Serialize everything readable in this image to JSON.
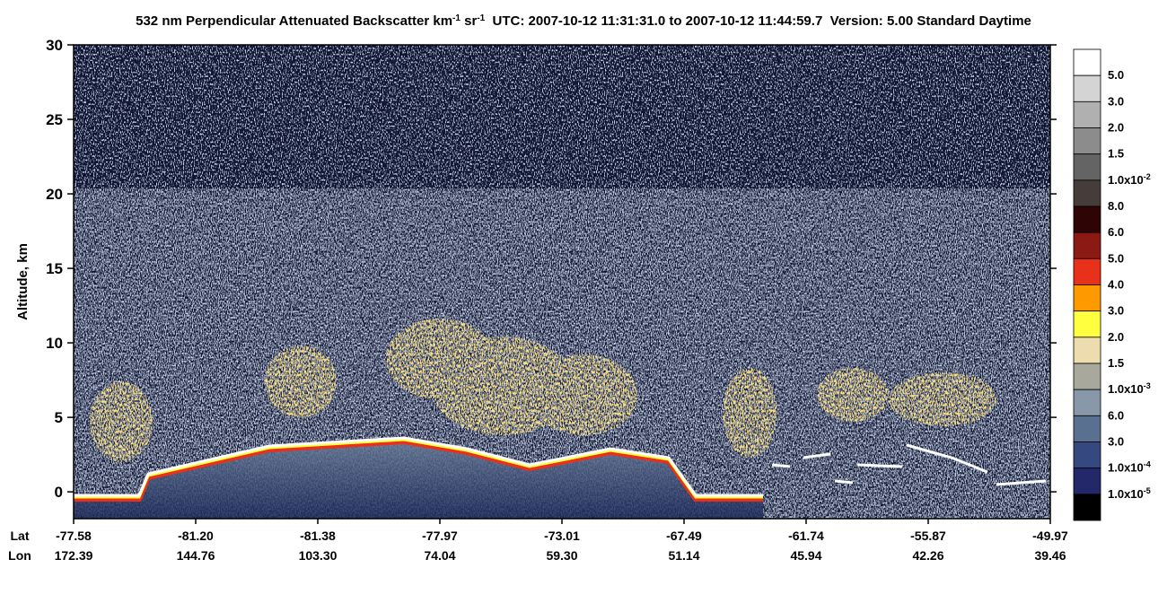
{
  "chart_data": {
    "type": "heatmap",
    "title_parts": [
      "532 nm Perpendicular Attenuated Backscatter km",
      "-1",
      " sr",
      "-1",
      "  UTC: 2007-10-12 11:31:31.0 to 2007-10-12 11:44:59.7  Version: 5.00 Standard Daytime"
    ],
    "y_label": "Altitude, km",
    "ylim": [
      -1.8,
      30
    ],
    "yticks": [
      0,
      5,
      10,
      15,
      20,
      25,
      30
    ],
    "x_row_titles": [
      "Lat",
      "Lon"
    ],
    "lat_labels": [
      "-77.58",
      "-81.20",
      "-81.38",
      "-77.97",
      "-73.01",
      "-67.49",
      "-61.74",
      "-55.87",
      "-49.97"
    ],
    "lon_labels": [
      "172.39",
      "144.76",
      "103.30",
      "74.04",
      "59.30",
      "51.14",
      "45.94",
      "42.26",
      "39.46"
    ],
    "colorbar": {
      "colors": [
        "#ffffff",
        "#d4d4d4",
        "#b0b0b0",
        "#8c8c8c",
        "#646464",
        "#463c3a",
        "#2e0404",
        "#8b1a14",
        "#e8301a",
        "#ff9900",
        "#ffff40",
        "#ecdcae",
        "#a8a89c",
        "#8898a8",
        "#5a7090",
        "#364880",
        "#22286a",
        "#000000"
      ],
      "labels": [
        "5.0",
        "3.0",
        "2.0",
        "1.5",
        [
          "1.0x10",
          "-2"
        ],
        "8.0",
        "6.0",
        "5.0",
        "4.0",
        "3.0",
        "2.0",
        "1.5",
        [
          "1.0x10",
          "-3"
        ],
        "6.0",
        "3.0",
        [
          "1.0x10",
          "-4"
        ],
        [
          "1.0x10",
          "-5"
        ]
      ]
    }
  }
}
